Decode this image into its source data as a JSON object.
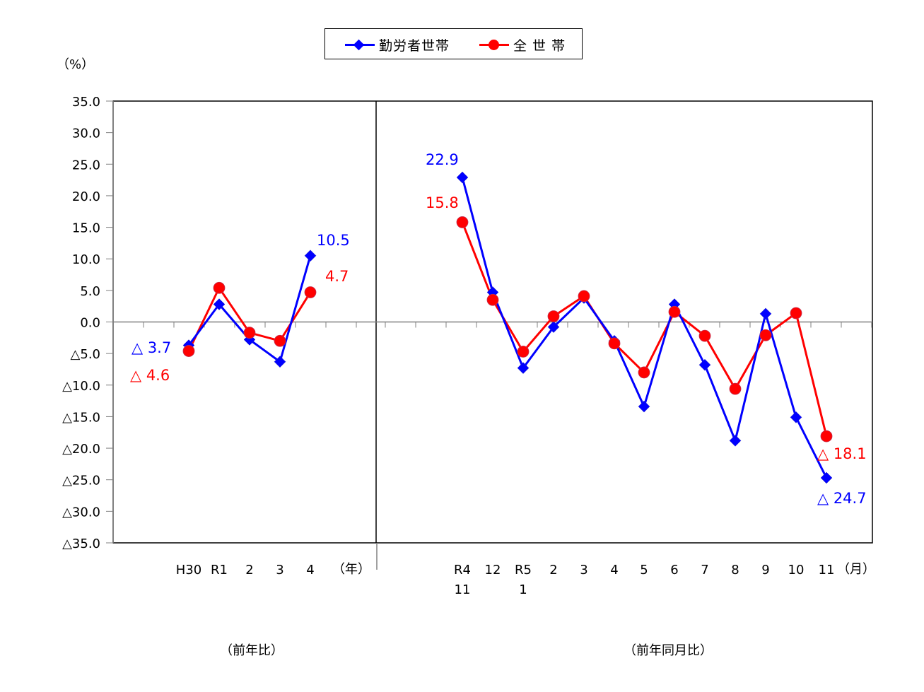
{
  "legend": {
    "items": [
      {
        "label": "勤労者世帯",
        "color": "#0000FF",
        "marker": "diamond"
      },
      {
        "label": "全 世 帯",
        "color": "#FF0000",
        "marker": "circle"
      }
    ]
  },
  "axes": {
    "y_unit_label": "（%）",
    "y_ticks": [
      "35.0",
      "30.0",
      "25.0",
      "20.0",
      "15.0",
      "10.0",
      "5.0",
      "0.0",
      "△5.0",
      "△10.0",
      "△15.0",
      "△20.0",
      "△25.0",
      "△30.0",
      "△35.0"
    ],
    "left_x_unit": "（年）",
    "right_x_unit": "（月）",
    "left_caption": "（前年比）",
    "right_caption": "（前年同月比）"
  },
  "chart_data": [
    {
      "type": "line",
      "title": "前年比",
      "xlabel": "（年）",
      "ylabel": "（%）",
      "ylim": [
        -35,
        35
      ],
      "grid": false,
      "legend_position": "top",
      "categories": [
        "H30",
        "R1",
        "2",
        "3",
        "4"
      ],
      "series": [
        {
          "name": "勤労者世帯",
          "color": "#0000FF",
          "marker": "diamond",
          "values": [
            -3.7,
            2.8,
            -2.8,
            -6.3,
            10.5
          ]
        },
        {
          "name": "全 世 帯",
          "color": "#FF0000",
          "marker": "circle",
          "values": [
            -4.6,
            5.4,
            -1.7,
            -3.0,
            4.7
          ]
        }
      ],
      "annotations": [
        {
          "text": "△ 3.7",
          "series": "勤労者世帯",
          "category": "H30"
        },
        {
          "text": "△ 4.6",
          "series": "全 世 帯",
          "category": "H30"
        },
        {
          "text": "10.5",
          "series": "勤労者世帯",
          "category": "4"
        },
        {
          "text": "4.7",
          "series": "全 世 帯",
          "category": "4"
        }
      ]
    },
    {
      "type": "line",
      "title": "前年同月比",
      "xlabel": "（月）",
      "ylabel": "（%）",
      "ylim": [
        -35,
        35
      ],
      "grid": false,
      "legend_position": "top",
      "categories": [
        "R4\n11",
        "12",
        "R5\n1",
        "2",
        "3",
        "4",
        "5",
        "6",
        "7",
        "8",
        "9",
        "10",
        "11"
      ],
      "series": [
        {
          "name": "勤労者世帯",
          "color": "#0000FF",
          "marker": "diamond",
          "values": [
            22.9,
            4.7,
            -7.3,
            -0.8,
            3.8,
            -3.0,
            -13.4,
            2.8,
            -6.8,
            -18.8,
            1.3,
            -15.1,
            -24.7
          ]
        },
        {
          "name": "全 世 帯",
          "color": "#FF0000",
          "marker": "circle",
          "values": [
            15.8,
            3.5,
            -4.7,
            0.9,
            4.1,
            -3.4,
            -8.0,
            1.6,
            -2.2,
            -10.6,
            -2.1,
            1.4,
            -18.1
          ]
        }
      ],
      "annotations": [
        {
          "text": "22.9",
          "series": "勤労者世帯",
          "category": "R4\n11"
        },
        {
          "text": "15.8",
          "series": "全 世 帯",
          "category": "R4\n11"
        },
        {
          "text": "△ 18.1",
          "series": "全 世 帯",
          "category": "11"
        },
        {
          "text": "△ 24.7",
          "series": "勤労者世帯",
          "category": "11"
        }
      ]
    }
  ]
}
